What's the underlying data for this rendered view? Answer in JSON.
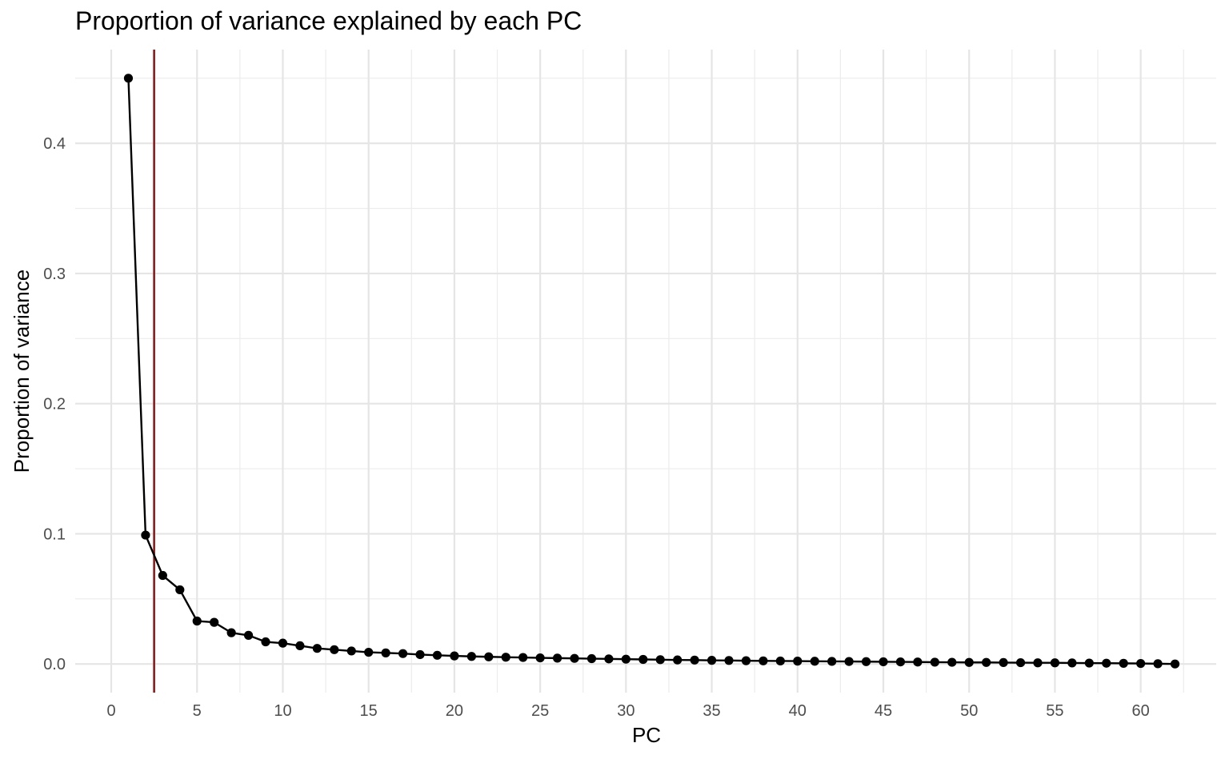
{
  "chart_data": {
    "type": "line",
    "title": "Proportion of variance explained by each PC",
    "xlabel": "PC",
    "ylabel": "Proportion of variance",
    "xlim": [
      -2.1,
      64.4
    ],
    "ylim": [
      -0.022,
      0.472
    ],
    "x_ticks": [
      0,
      5,
      10,
      15,
      20,
      25,
      30,
      35,
      40,
      45,
      50,
      55,
      60
    ],
    "x_tick_labels": [
      "0",
      "5",
      "10",
      "15",
      "20",
      "25",
      "30",
      "35",
      "40",
      "45",
      "50",
      "55",
      "60"
    ],
    "y_ticks": [
      0.0,
      0.1,
      0.2,
      0.3,
      0.4
    ],
    "y_tick_labels": [
      "0.0",
      "0.1",
      "0.2",
      "0.3",
      "0.4"
    ],
    "grid": true,
    "vline": {
      "x": 2.5,
      "color": "#8b1a1a"
    },
    "series": [
      {
        "color": "#000000",
        "x": [
          1,
          2,
          3,
          4,
          5,
          6,
          7,
          8,
          9,
          10,
          11,
          12,
          13,
          14,
          15,
          16,
          17,
          18,
          19,
          20,
          21,
          22,
          23,
          24,
          25,
          26,
          27,
          28,
          29,
          30,
          31,
          32,
          33,
          34,
          35,
          36,
          37,
          38,
          39,
          40,
          41,
          42,
          43,
          44,
          45,
          46,
          47,
          48,
          49,
          50,
          51,
          52,
          53,
          54,
          55,
          56,
          57,
          58,
          59,
          60,
          61,
          62
        ],
        "y": [
          0.45,
          0.099,
          0.068,
          0.057,
          0.033,
          0.032,
          0.024,
          0.022,
          0.017,
          0.016,
          0.014,
          0.012,
          0.011,
          0.01,
          0.009,
          0.0085,
          0.008,
          0.0072,
          0.0067,
          0.0062,
          0.0058,
          0.0055,
          0.0052,
          0.005,
          0.0047,
          0.0045,
          0.0043,
          0.0041,
          0.0039,
          0.0037,
          0.0035,
          0.0033,
          0.0031,
          0.003,
          0.0028,
          0.0027,
          0.0025,
          0.0024,
          0.0023,
          0.0022,
          0.0021,
          0.002,
          0.0019,
          0.0018,
          0.0017,
          0.0016,
          0.0015,
          0.0014,
          0.0013,
          0.0012,
          0.0012,
          0.0011,
          0.001,
          0.0009,
          0.0009,
          0.0008,
          0.0007,
          0.0006,
          0.0005,
          0.0004,
          0.0002,
          0.0
        ]
      }
    ]
  }
}
